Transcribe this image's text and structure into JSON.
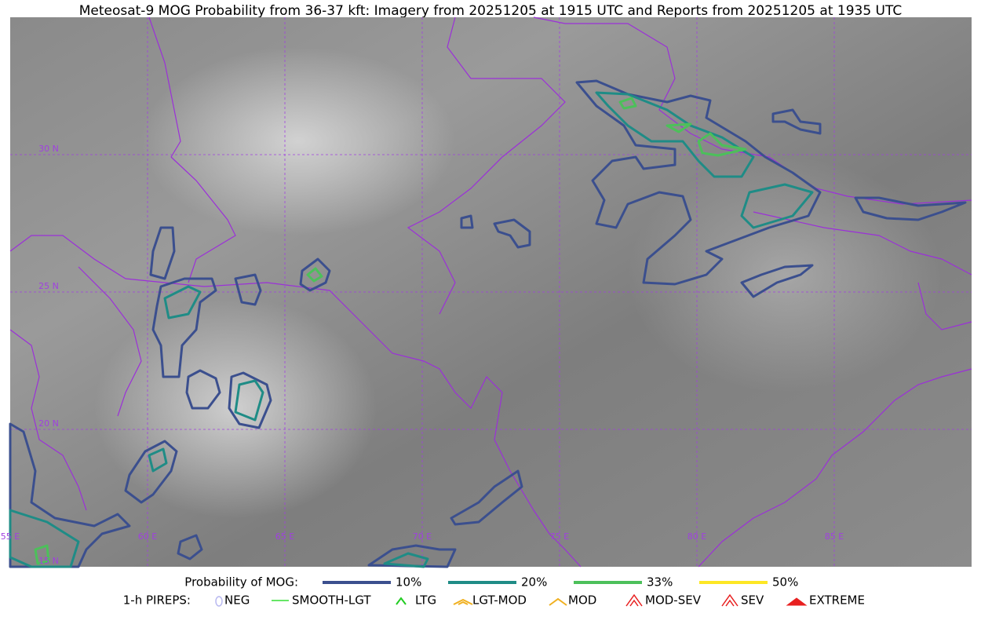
{
  "title": "Meteosat-9 MOG Probability from 36-37 kft: Imagery from 20251205 at 1915 UTC and Reports from 20251205 at 1935 UTC",
  "map": {
    "lon_labels": [
      "55 E",
      "60 E",
      "65 E",
      "70 E",
      "75 E",
      "80 E",
      "85 E"
    ],
    "lat_labels": [
      "30 N",
      "25 N",
      "20 N",
      "15 N"
    ]
  },
  "legend": {
    "probability": {
      "label": "Probability of MOG:",
      "items": [
        {
          "label": "10%",
          "color": "#3b4f8e"
        },
        {
          "label": "20%",
          "color": "#1f8c86"
        },
        {
          "label": "33%",
          "color": "#4cc05a"
        },
        {
          "label": "50%",
          "color": "#fde725"
        }
      ]
    },
    "pireps": {
      "label": "1-h PIREPS:",
      "items": [
        {
          "label": "NEG",
          "color": "#b8b8f0"
        },
        {
          "label": "SMOOTH-LGT",
          "color": "#33dd33"
        },
        {
          "label": "LTG",
          "color": "#22cc22"
        },
        {
          "label": "LGT-MOD",
          "color": "#f0b020"
        },
        {
          "label": "MOD",
          "color": "#f0b020"
        },
        {
          "label": "MOD-SEV",
          "color": "#e82020"
        },
        {
          "label": "SEV",
          "color": "#e82020"
        },
        {
          "label": "EXTREME",
          "color": "#e82020"
        }
      ]
    }
  }
}
